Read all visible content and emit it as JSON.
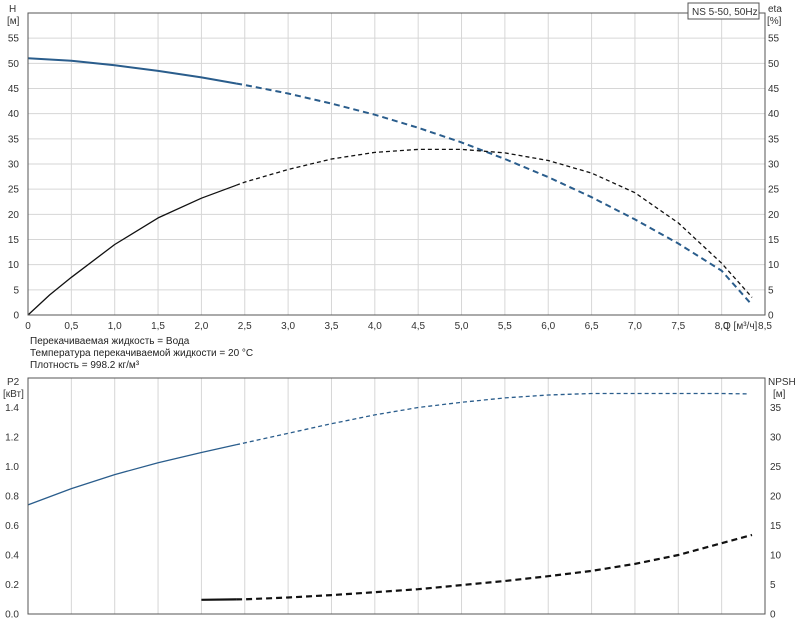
{
  "info_lines": [
    "Перекачиваемая жидкость = Вода",
    "Температура перекачиваемой жидкости = 20 °C",
    "Плотность = 998.2 кг/м³"
  ],
  "chart_data": [
    {
      "type": "line",
      "legend_label": "NS 5-50, 50Hz",
      "legend_position": "top-right",
      "xlabel": "Q [м³/ч]",
      "ylabel_left": "H",
      "ylabel_left_unit": "[м]",
      "ylabel_right": "eta",
      "ylabel_right_unit": "[%]",
      "xlim": [
        0,
        8.5
      ],
      "ylim": [
        0,
        60
      ],
      "xticks": [
        0,
        0.5,
        1.0,
        1.5,
        2.0,
        2.5,
        3.0,
        3.5,
        4.0,
        4.5,
        5.0,
        5.5,
        6.0,
        6.5,
        7.0,
        7.5,
        8.0,
        8.5
      ],
      "xtick_labels": [
        "0",
        "0,5",
        "1,0",
        "1,5",
        "2,0",
        "2,5",
        "3,0",
        "3,5",
        "4,0",
        "4,5",
        "5,0",
        "5,5",
        "6,0",
        "6,5",
        "7,0",
        "7,5",
        "8,0",
        "8,5"
      ],
      "yticks": [
        0,
        5,
        10,
        15,
        20,
        25,
        30,
        35,
        40,
        45,
        50,
        55
      ],
      "grid": true,
      "series": [
        {
          "axis": "left",
          "color": "#2a5d8c",
          "width": 2,
          "solid_until": 2.4,
          "x": [
            0,
            0.5,
            1.0,
            1.5,
            2.0,
            2.5,
            3.0,
            3.5,
            4.0,
            4.5,
            5.0,
            5.5,
            6.0,
            6.5,
            7.0,
            7.5,
            8.0,
            8.35
          ],
          "values": [
            51,
            50.5,
            49.6,
            48.5,
            47.2,
            45.7,
            44.0,
            42.0,
            39.8,
            37.2,
            34.3,
            31.0,
            27.4,
            23.4,
            19.0,
            14.2,
            8.8,
            2.0
          ]
        },
        {
          "axis": "right",
          "color": "#111111",
          "width": 1.3,
          "solid_until": 2.4,
          "x": [
            0,
            0.25,
            0.5,
            1.0,
            1.5,
            2.0,
            2.5,
            3.0,
            3.5,
            4.0,
            4.5,
            5.0,
            5.5,
            6.0,
            6.5,
            7.0,
            7.5,
            8.0,
            8.35
          ],
          "values": [
            0,
            4,
            7.5,
            14,
            19.3,
            23.2,
            26.4,
            28.9,
            31.0,
            32.3,
            32.9,
            32.9,
            32.2,
            30.7,
            28.2,
            24.3,
            18.3,
            10.3,
            3.5
          ]
        }
      ]
    },
    {
      "type": "line",
      "xlim": [
        0,
        8.5
      ],
      "ylabel_left": "P2",
      "ylabel_left_unit": "[кВт]",
      "ylabel_right": "NPSH",
      "ylabel_right_unit": "[м]",
      "ylim_left": [
        0,
        1.6
      ],
      "ylim_right": [
        0,
        40
      ],
      "yticks_left": [
        0,
        0.2,
        0.4,
        0.6,
        0.8,
        1.0,
        1.2,
        1.4
      ],
      "ytick_labels_left": [
        "0.0",
        "0.2",
        "0.4",
        "0.6",
        "0.8",
        "1.0",
        "1.2",
        "1.4"
      ],
      "yticks_right": [
        0,
        5,
        10,
        15,
        20,
        25,
        30,
        35
      ],
      "grid": true,
      "series": [
        {
          "axis": "left",
          "color": "#2a5d8c",
          "width": 1.3,
          "solid_until": 2.4,
          "x": [
            0,
            0.5,
            1.0,
            1.5,
            2.0,
            2.5,
            3.0,
            3.5,
            4.0,
            4.5,
            5.0,
            5.5,
            6.0,
            6.5,
            7.0,
            7.5,
            8.0,
            8.3
          ],
          "values": [
            0.74,
            0.85,
            0.945,
            1.025,
            1.095,
            1.16,
            1.225,
            1.29,
            1.35,
            1.4,
            1.435,
            1.465,
            1.485,
            1.495,
            1.495,
            1.495,
            1.495,
            1.492
          ]
        },
        {
          "axis": "right",
          "color": "#111111",
          "width": 2.2,
          "solid_until": 2.4,
          "x": [
            2.0,
            2.5,
            3.0,
            3.5,
            4.0,
            4.5,
            5.0,
            5.5,
            6.0,
            6.5,
            7.0,
            7.5,
            8.0,
            8.35
          ],
          "values": [
            2.4,
            2.5,
            2.8,
            3.2,
            3.7,
            4.2,
            4.9,
            5.6,
            6.4,
            7.3,
            8.5,
            10.0,
            12.0,
            13.4
          ]
        }
      ]
    }
  ]
}
